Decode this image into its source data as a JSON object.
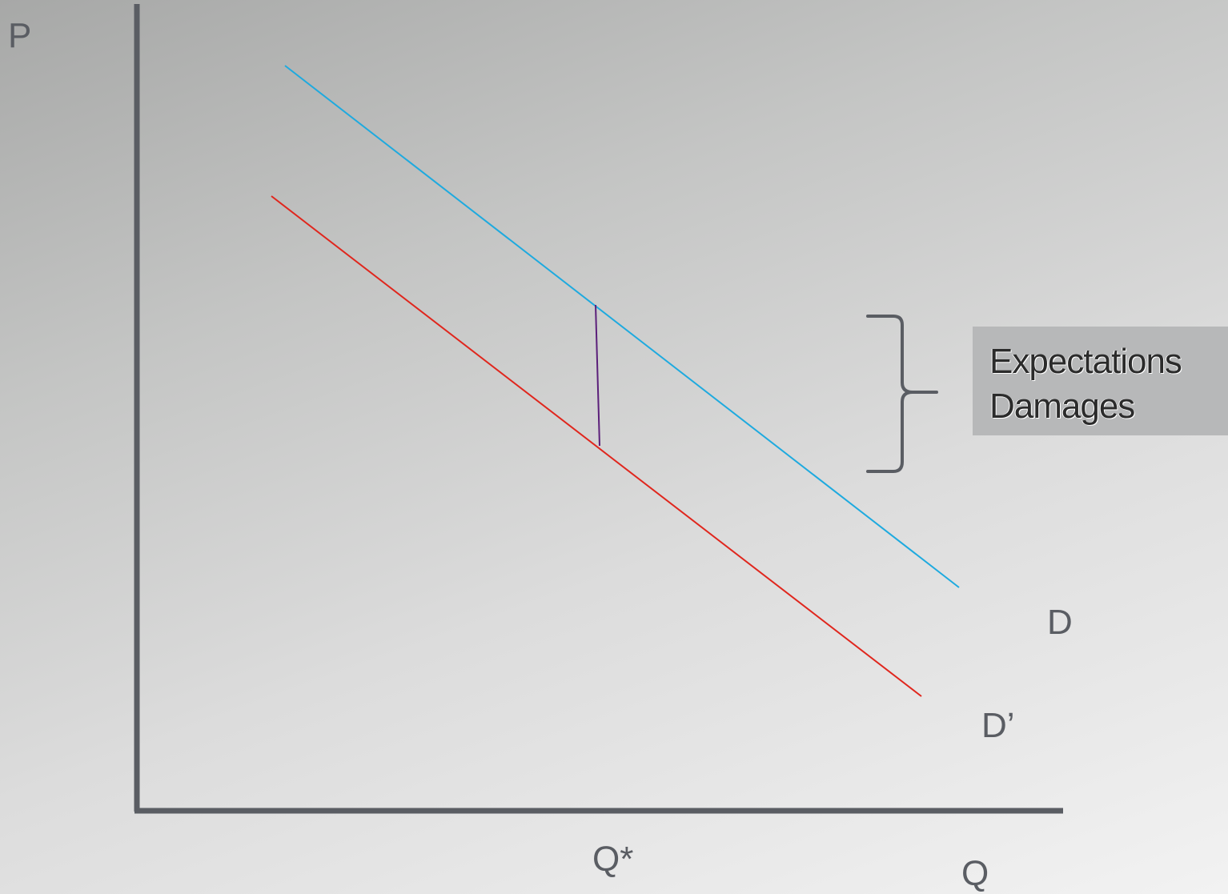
{
  "axes": {
    "y_label": "P",
    "x_label": "Q"
  },
  "markers": {
    "q_star": "Q*"
  },
  "curves": {
    "upper_label": "D",
    "lower_label": "D’",
    "upper_color": "#1eaadf",
    "lower_color": "#e0261d",
    "gap_color": "#5b1f7a"
  },
  "callout": {
    "line1": "Expectations",
    "line2": "Damages"
  }
}
